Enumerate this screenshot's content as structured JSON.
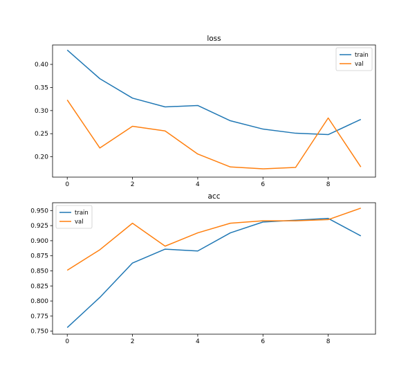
{
  "chart_data": [
    {
      "type": "line",
      "title": "loss",
      "x": [
        0,
        1,
        2,
        3,
        4,
        5,
        6,
        7,
        8,
        9
      ],
      "xlim": [
        -0.45,
        9.45
      ],
      "ylim": [
        0.156,
        0.442
      ],
      "xticks": [
        0,
        2,
        4,
        6,
        8
      ],
      "yticks": [
        0.2,
        0.25,
        0.3,
        0.35,
        0.4
      ],
      "ytick_labels": [
        "0.20",
        "0.25",
        "0.30",
        "0.35",
        "0.40"
      ],
      "legend_position": "top-right",
      "series": [
        {
          "name": "train",
          "color": "#1f77b4",
          "values": [
            0.431,
            0.369,
            0.327,
            0.308,
            0.311,
            0.278,
            0.26,
            0.251,
            0.248,
            0.281
          ]
        },
        {
          "name": "val",
          "color": "#ff7f0e",
          "values": [
            0.323,
            0.219,
            0.266,
            0.256,
            0.206,
            0.178,
            0.174,
            0.177,
            0.284,
            0.178
          ]
        }
      ]
    },
    {
      "type": "line",
      "title": "acc",
      "x": [
        0,
        1,
        2,
        3,
        4,
        5,
        6,
        7,
        8,
        9
      ],
      "xlim": [
        -0.45,
        9.45
      ],
      "ylim": [
        0.745,
        0.963
      ],
      "xticks": [
        0,
        2,
        4,
        6,
        8
      ],
      "yticks": [
        0.75,
        0.775,
        0.8,
        0.825,
        0.85,
        0.875,
        0.9,
        0.925,
        0.95
      ],
      "ytick_labels": [
        "0.750",
        "0.775",
        "0.800",
        "0.825",
        "0.850",
        "0.875",
        "0.900",
        "0.925",
        "0.950"
      ],
      "legend_position": "top-left",
      "series": [
        {
          "name": "train",
          "color": "#1f77b4",
          "values": [
            0.756,
            0.806,
            0.863,
            0.886,
            0.883,
            0.913,
            0.931,
            0.934,
            0.937,
            0.908
          ]
        },
        {
          "name": "val",
          "color": "#ff7f0e",
          "values": [
            0.851,
            0.885,
            0.929,
            0.891,
            0.913,
            0.929,
            0.933,
            0.933,
            0.935,
            0.954
          ]
        }
      ]
    }
  ]
}
